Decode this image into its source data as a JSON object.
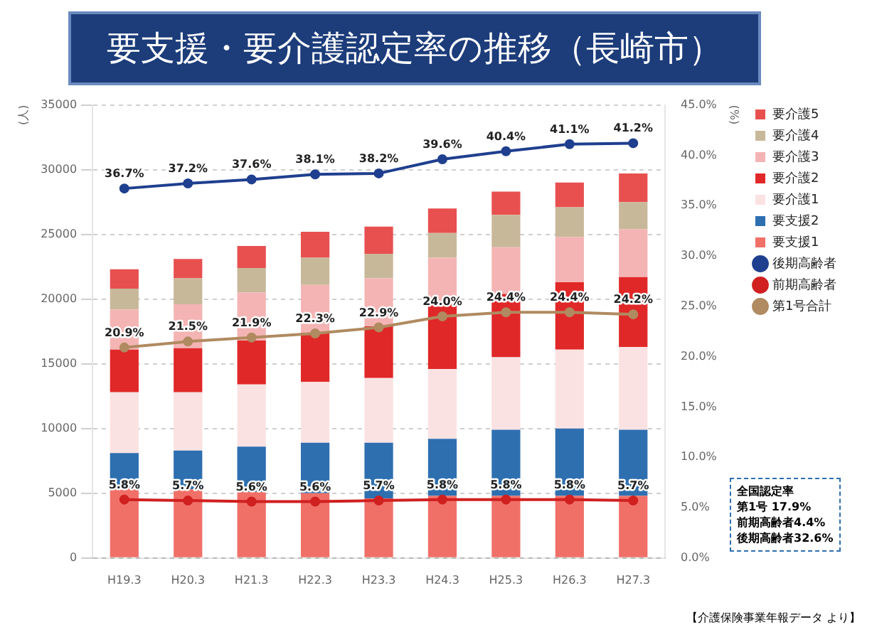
{
  "chart_data": {
    "type": "bar",
    "title": "要支援・要介護認定率の推移（長崎市）",
    "ylabel": "(人)",
    "y2label": "(%)",
    "categories": [
      "H19.3",
      "H20.3",
      "H21.3",
      "H22.3",
      "H23.3",
      "H24.3",
      "H25.3",
      "H26.3",
      "H27.3"
    ],
    "stacked": true,
    "grid": "y",
    "legend": "right",
    "marker": "circle",
    "ylim": [
      0,
      35000
    ],
    "yticks": [
      0,
      5000,
      10000,
      15000,
      20000,
      25000,
      30000,
      35000
    ],
    "y2lim": [
      0,
      45
    ],
    "y2ticks": [
      {
        "value": 0,
        "label": "0.0%"
      },
      {
        "value": 5,
        "label": "5.0%"
      },
      {
        "value": 10,
        "label": "10.0%"
      },
      {
        "value": 15,
        "label": "15.0%"
      },
      {
        "value": 20,
        "label": "20.0%"
      },
      {
        "value": 25,
        "label": "25.0%"
      },
      {
        "value": 30,
        "label": "30.0%"
      },
      {
        "value": 35,
        "label": "35.0%"
      },
      {
        "value": 40,
        "label": "40.0%"
      },
      {
        "value": 45,
        "label": "45.0%"
      }
    ],
    "series": [
      {
        "name": "第1号合計",
        "type": "line",
        "axis": "y2",
        "color": "#b08a60",
        "values": [
          20.9,
          21.5,
          21.9,
          22.3,
          22.9,
          24.0,
          24.4,
          24.4,
          24.2
        ],
        "value_labels": [
          "20.9%",
          "21.5%",
          "21.9%",
          "22.3%",
          "22.9%",
          "24.0%",
          "24.4%",
          "24.4%",
          "24.2%"
        ]
      },
      {
        "name": "前期高齢者",
        "type": "line",
        "axis": "y2",
        "color": "#d02020",
        "values": [
          5.8,
          5.7,
          5.6,
          5.6,
          5.7,
          5.8,
          5.8,
          5.8,
          5.7
        ],
        "value_labels": [
          "5.8%",
          "5.7%",
          "5.6%",
          "5.6%",
          "5.7%",
          "5.8%",
          "5.8%",
          "5.8%",
          "5.7%"
        ]
      },
      {
        "name": "後期高齢者",
        "type": "line",
        "axis": "y2",
        "color": "#1f3f8f",
        "values": [
          36.7,
          37.2,
          37.6,
          38.1,
          38.2,
          39.6,
          40.4,
          41.1,
          41.2
        ],
        "value_labels": [
          "36.7%",
          "37.2%",
          "37.6%",
          "38.1%",
          "38.2%",
          "39.6%",
          "40.4%",
          "41.1%",
          "41.2%"
        ]
      },
      {
        "name": "要支援1",
        "color": "#f07068",
        "values": [
          5400,
          5300,
          5100,
          5000,
          4600,
          4800,
          4800,
          4800,
          4800
        ]
      },
      {
        "name": "要支援2",
        "color": "#2e6fb0",
        "values": [
          2700,
          3000,
          3500,
          3900,
          4300,
          4400,
          5100,
          5200,
          5100
        ]
      },
      {
        "name": "要介護1",
        "color": "#fbe2e2",
        "values": [
          4700,
          4500,
          4800,
          4700,
          5000,
          5400,
          5600,
          6100,
          6400
        ]
      },
      {
        "name": "要介護2",
        "color": "#e02828",
        "values": [
          3300,
          3400,
          3400,
          3800,
          4000,
          5000,
          4900,
          5200,
          5400
        ]
      },
      {
        "name": "要介護3",
        "color": "#f4b4b4",
        "values": [
          3100,
          3400,
          3700,
          3700,
          3700,
          3600,
          3600,
          3500,
          3700
        ]
      },
      {
        "name": "要介護4",
        "color": "#c8b89a",
        "values": [
          1600,
          2000,
          1900,
          2100,
          1900,
          1900,
          2500,
          2300,
          2100
        ]
      },
      {
        "name": "要介護5",
        "color": "#e85050",
        "values": [
          1500,
          1500,
          1700,
          2000,
          2100,
          1900,
          1800,
          1900,
          2200
        ]
      }
    ],
    "annotations": [
      "全国認定率",
      "第1号 17.9%",
      "前期高齢者4.4%",
      "後期高齢者32.6%",
      "【介護保険事業年報データ より】"
    ]
  }
}
